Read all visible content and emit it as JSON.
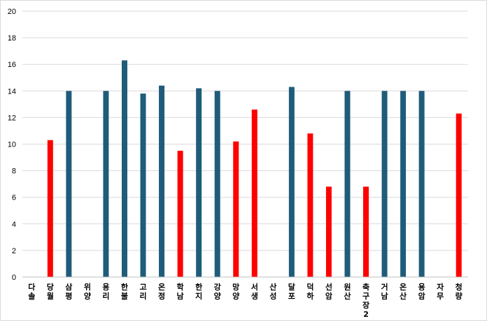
{
  "chart_data": {
    "type": "bar",
    "title": "",
    "xlabel": "",
    "ylabel": "",
    "ylim": [
      0,
      20
    ],
    "yticks": [
      0,
      2,
      4,
      6,
      8,
      10,
      12,
      14,
      16,
      18,
      20
    ],
    "grid": true,
    "legend": "none",
    "categories": [
      "다솔",
      "당월",
      "삼평",
      "위양",
      "용리",
      "한불",
      "고리",
      "온정",
      "학남",
      "한지",
      "강양",
      "망양",
      "서생",
      "산성",
      "달포",
      "덕하",
      "선암",
      "원산",
      "축구장2",
      "거남",
      "온산",
      "용암",
      "자무",
      "청량"
    ],
    "values": [
      0,
      10.3,
      14.0,
      0,
      14.0,
      16.3,
      13.8,
      14.4,
      9.5,
      14.2,
      14.0,
      10.2,
      12.6,
      0,
      14.3,
      10.8,
      6.8,
      14.0,
      6.8,
      14.0,
      14.0,
      14.0,
      0,
      12.3
    ],
    "bar_colors": [
      "#1f5c7a",
      "#ff0000",
      "#1f5c7a",
      "#1f5c7a",
      "#1f5c7a",
      "#1f5c7a",
      "#1f5c7a",
      "#1f5c7a",
      "#ff0000",
      "#1f5c7a",
      "#1f5c7a",
      "#ff0000",
      "#ff0000",
      "#1f5c7a",
      "#1f5c7a",
      "#ff0000",
      "#ff0000",
      "#1f5c7a",
      "#ff0000",
      "#1f5c7a",
      "#1f5c7a",
      "#1f5c7a",
      "#1f5c7a",
      "#ff0000"
    ]
  }
}
